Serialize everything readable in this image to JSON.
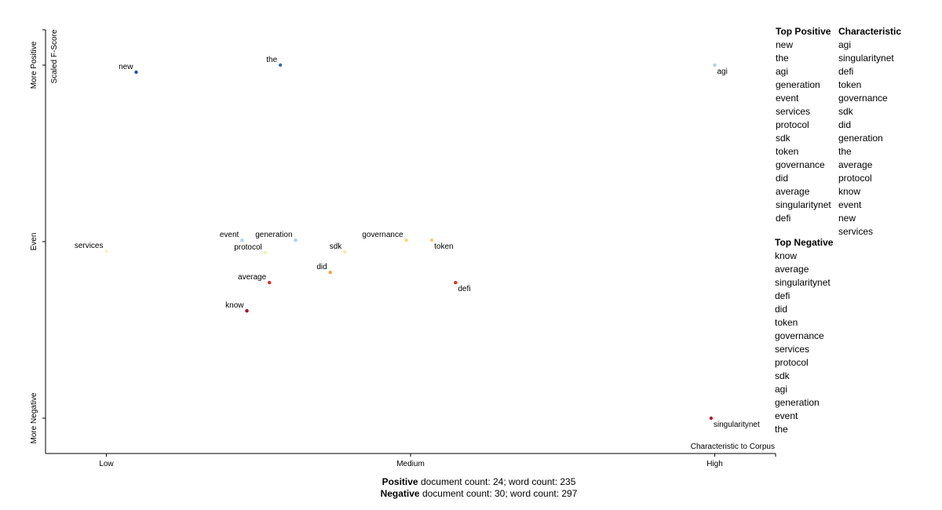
{
  "chart_data": {
    "type": "scatter",
    "y_axis_label": "Scaled F-Score",
    "x_axis_label": "Characteristic to Corpus",
    "xlim": [
      -0.1,
      1.1
    ],
    "ylim": [
      -0.1,
      1.1
    ],
    "xticks": [
      {
        "value": 0,
        "label": "Low"
      },
      {
        "value": 0.5,
        "label": "Medium"
      },
      {
        "value": 1,
        "label": "High"
      }
    ],
    "yticks": [
      {
        "value": 0,
        "label": "More Negative"
      },
      {
        "value": 0.5,
        "label": "Even"
      },
      {
        "value": 1,
        "label": "More Positive"
      }
    ],
    "points": [
      {
        "label": "new",
        "x": 0.049,
        "y": 0.98,
        "color": "#2b4ea2"
      },
      {
        "label": "the",
        "x": 0.286,
        "y": 1.0,
        "color": "#3a67b9"
      },
      {
        "label": "agi",
        "x": 1.0,
        "y": 1.0,
        "color": "#a9d3e6"
      },
      {
        "label": "event",
        "x": 0.223,
        "y": 0.504,
        "color": "#abd9e9"
      },
      {
        "label": "generation",
        "x": 0.311,
        "y": 0.504,
        "color": "#a3d3e2"
      },
      {
        "label": "services",
        "x": 0.0,
        "y": 0.473,
        "color": "#fbf1c2"
      },
      {
        "label": "protocol",
        "x": 0.261,
        "y": 0.469,
        "color": "#fcedb0"
      },
      {
        "label": "sdk",
        "x": 0.392,
        "y": 0.471,
        "color": "#fde8a8"
      },
      {
        "label": "governance",
        "x": 0.493,
        "y": 0.504,
        "color": "#fdd57a"
      },
      {
        "label": "token",
        "x": 0.535,
        "y": 0.504,
        "color": "#fdc96a"
      },
      {
        "label": "did",
        "x": 0.368,
        "y": 0.413,
        "color": "#f4a04e"
      },
      {
        "label": "average",
        "x": 0.268,
        "y": 0.384,
        "color": "#d73027"
      },
      {
        "label": "defi",
        "x": 0.574,
        "y": 0.384,
        "color": "#d73027"
      },
      {
        "label": "know",
        "x": 0.231,
        "y": 0.304,
        "color": "#a50026"
      },
      {
        "label": "singularitynet",
        "x": 0.994,
        "y": 0.0,
        "color": "#c0182a"
      }
    ]
  },
  "panel": {
    "top_positive": {
      "title": "Top Positive",
      "items": [
        "new",
        "the",
        "agi",
        "generation",
        "event",
        "services",
        "protocol",
        "sdk",
        "token",
        "governance",
        "did",
        "average",
        "singularitynet",
        "defi"
      ]
    },
    "characteristic": {
      "title": "Characteristic",
      "items": [
        "agi",
        "singularitynet",
        "defi",
        "token",
        "governance",
        "sdk",
        "did",
        "generation",
        "the",
        "average",
        "protocol",
        "know",
        "event",
        "new",
        "services"
      ]
    },
    "top_negative": {
      "title": "Top Negative",
      "items": [
        "know",
        "average",
        "singularitynet",
        "defi",
        "did",
        "token",
        "governance",
        "services",
        "protocol",
        "sdk",
        "agi",
        "generation",
        "event",
        "the"
      ]
    }
  },
  "footer": [
    {
      "bold": "Positive",
      "text": " document count: 24; word count: 235"
    },
    {
      "bold": "Negative",
      "text": " document count: 30; word count: 297"
    }
  ]
}
